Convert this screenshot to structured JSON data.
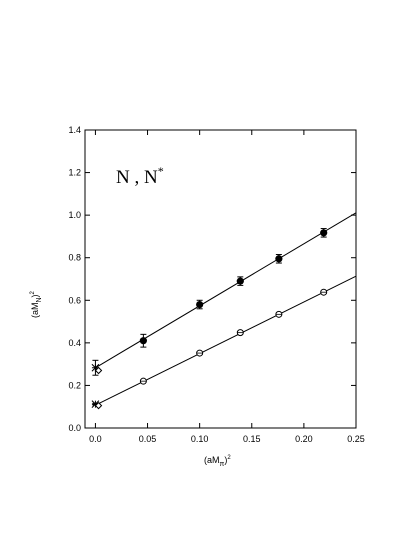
{
  "chart_data": {
    "type": "scatter",
    "title": "",
    "annotation": {
      "main": "N , N",
      "superscript": "*"
    },
    "xlabel": {
      "base": "(aM",
      "sub": "π",
      "tail": ")",
      "sup": "2"
    },
    "ylabel": {
      "base": "(aM",
      "sub": "N",
      "tail": ")",
      "sup": "2"
    },
    "xlim": [
      -0.01,
      0.25
    ],
    "ylim": [
      0.0,
      1.4
    ],
    "xticks": [
      0.0,
      0.05,
      0.1,
      0.15,
      0.2,
      0.25
    ],
    "xtick_labels": [
      "0.0",
      "0.05",
      "0.10",
      "0.15",
      "0.20",
      "0.25"
    ],
    "yticks": [
      0.0,
      0.2,
      0.4,
      0.6,
      0.8,
      1.0,
      1.2,
      1.4
    ],
    "ytick_labels": [
      "0.0",
      "0.2",
      "0.4",
      "0.6",
      "0.8",
      "1.0",
      "1.2",
      "1.4"
    ],
    "series": [
      {
        "marker": "filled-circle",
        "x": [
          0.046,
          0.1,
          0.139,
          0.176,
          0.219
        ],
        "y": [
          0.41,
          0.58,
          0.69,
          0.795,
          0.917
        ],
        "yerr": [
          0.03,
          0.02,
          0.02,
          0.02,
          0.02
        ]
      },
      {
        "marker": "open-circle",
        "x": [
          0.046,
          0.1,
          0.139,
          0.176,
          0.219
        ],
        "y": [
          0.22,
          0.352,
          0.448,
          0.534,
          0.638
        ],
        "yerr": [
          0.006,
          0.006,
          0.006,
          0.006,
          0.006
        ]
      }
    ],
    "fits": [
      {
        "x0": 0.0,
        "y0": 0.283,
        "x1": 0.25,
        "y1": 1.011
      },
      {
        "x0": 0.0,
        "y0": 0.107,
        "x1": 0.25,
        "y1": 0.713
      }
    ],
    "extrapolated": [
      {
        "marker": "star",
        "x": 0.0,
        "y": 0.283,
        "yerr": 0.035
      },
      {
        "marker": "diamond",
        "x": 0.003,
        "y": 0.27
      },
      {
        "marker": "star",
        "x": 0.0,
        "y": 0.112,
        "yerr": 0.004
      },
      {
        "marker": "diamond",
        "x": 0.003,
        "y": 0.105
      }
    ]
  }
}
